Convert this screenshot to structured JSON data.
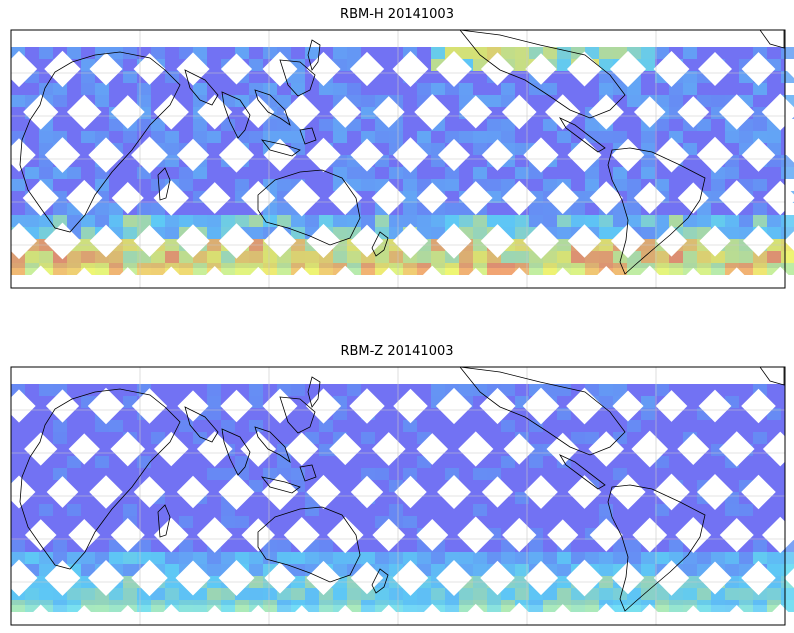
{
  "panels": [
    {
      "title": "RBM-H 20141003",
      "high_south": 0.9,
      "high_north_band": 0.75,
      "mid": 0.25
    },
    {
      "title": "RBM-Z 20141003",
      "high_south": 0.55,
      "high_north_band": 0.2,
      "mid": 0.15
    }
  ],
  "colors": {
    "low": "#6a6af2",
    "mid": "#5ad8f5",
    "high": "#f05a5a",
    "coast": "#000000",
    "grid": "#c8c8c8"
  }
}
